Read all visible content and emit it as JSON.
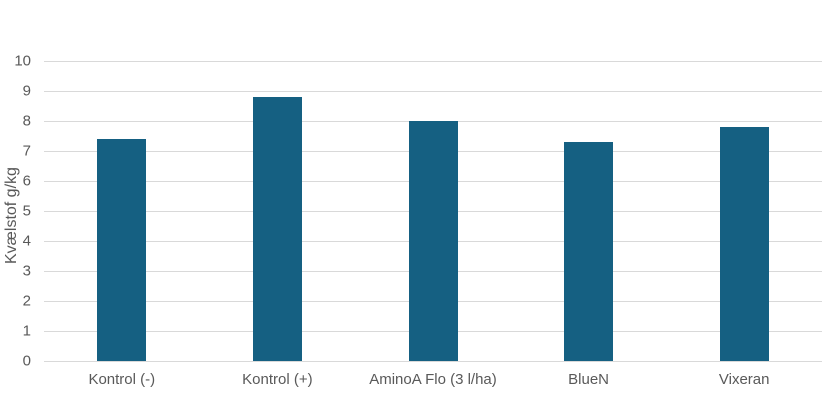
{
  "chart_data": {
    "type": "bar",
    "title": "",
    "xlabel": "",
    "ylabel": "Kvælstof g/kg",
    "categories": [
      "Kontrol (-)",
      "Kontrol (+)",
      "AminoA Flo (3 l/ha)",
      "BlueN",
      "Vixeran"
    ],
    "values": [
      7.4,
      8.8,
      8.0,
      7.3,
      7.8
    ],
    "ylim": [
      0,
      10
    ],
    "yticks": [
      0,
      1,
      2,
      3,
      4,
      5,
      6,
      7,
      8,
      9,
      10
    ],
    "grid": "horizontal",
    "legend": "none",
    "colors": {
      "bar": "#156082",
      "gridline": "#D9D9D9",
      "axis_line": "#D9D9D9",
      "text": "#595959",
      "background": "#FFFFFF"
    }
  }
}
